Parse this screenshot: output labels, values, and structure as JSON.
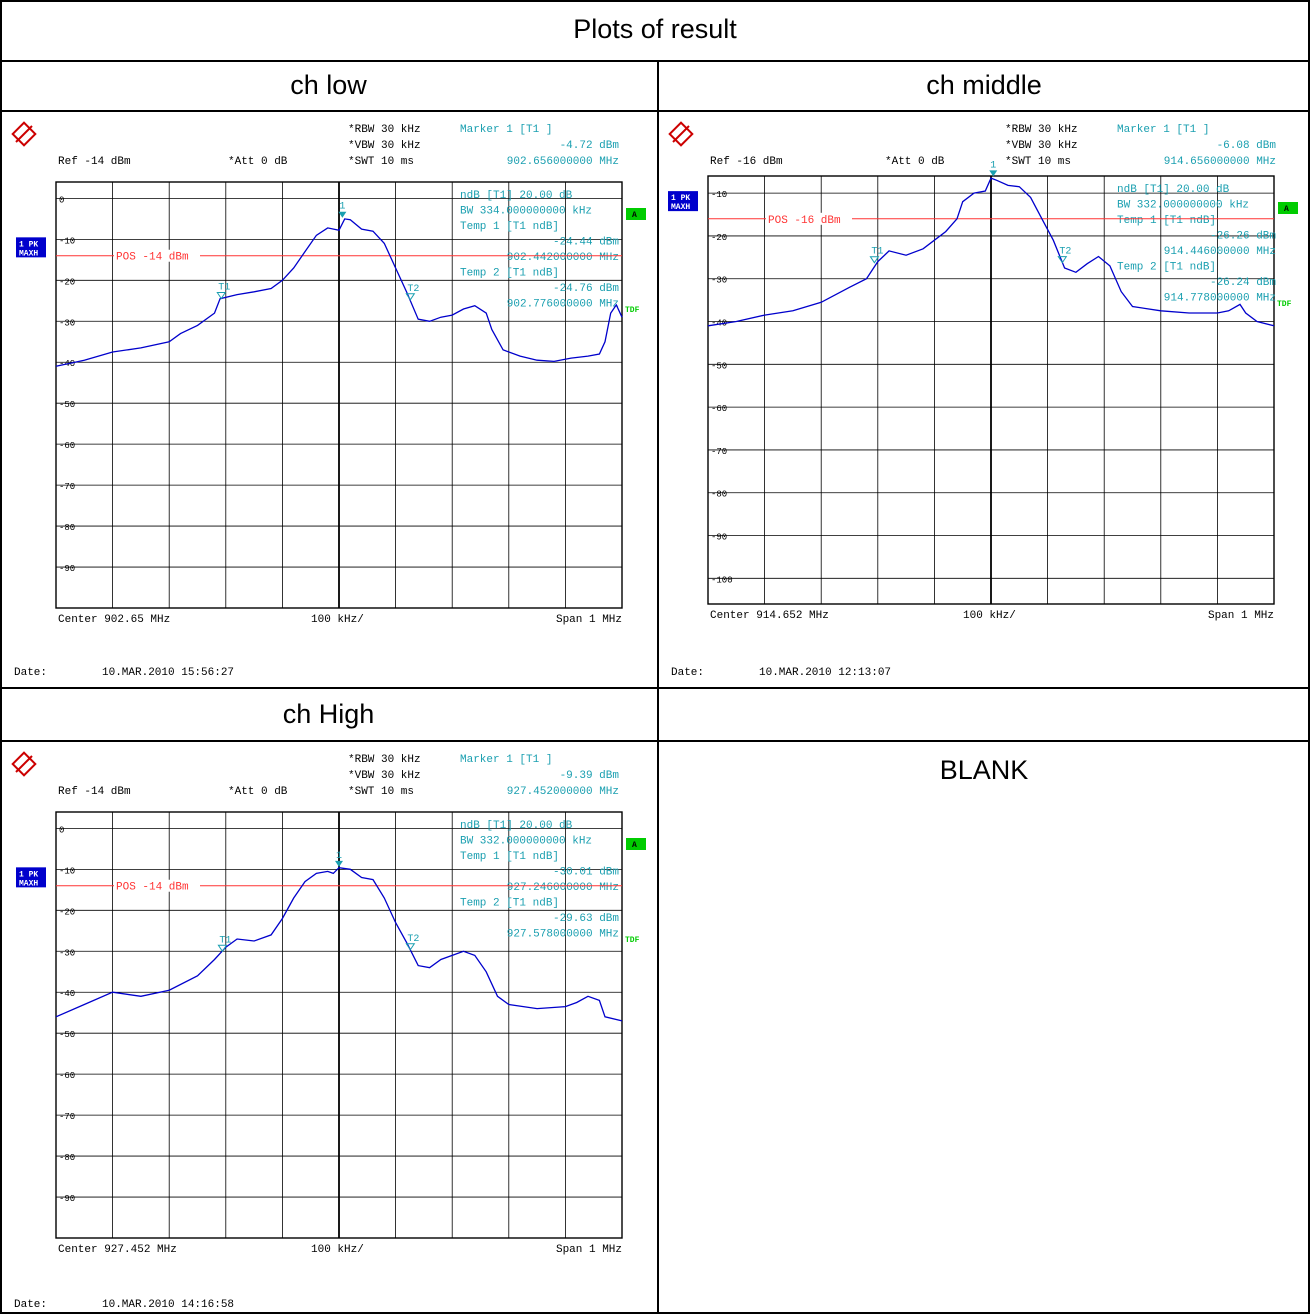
{
  "table": {
    "title": "Plots of result",
    "cells": {
      "ch_low": "ch low",
      "ch_middle": "ch middle",
      "ch_high": "ch High",
      "blank": "BLANK"
    }
  },
  "colors": {
    "trace": "#0000cc",
    "cyan": "#1a9fb0",
    "ref_line": "#ff3333",
    "badge_blue": "#0000cc",
    "badge_green": "#00cc00"
  },
  "chart_data": [
    {
      "type": "line",
      "name_key": "ch_low",
      "header": {
        "rbw": "RBW 30 kHz",
        "vbw": "VBW 30 kHz",
        "swt": "SWT 10 ms",
        "ref": "Ref -14 dBm",
        "att": "Att  0 dB"
      },
      "marker": {
        "title": "Marker 1 [T1 ]",
        "level": "-4.72 dBm",
        "freq": "902.656000000 MHz"
      },
      "ndb": {
        "line1": "ndB [T1]    20.00 dB",
        "bw": "BW 334.000000000 kHz",
        "temp1": "Temp 1 [T1 ndB]",
        "temp1_level": "-24.44 dBm",
        "temp1_freq": "902.442000000 MHz",
        "temp2": "Temp 2 [T1 ndB]",
        "temp2_level": "-24.76 dBm",
        "temp2_freq": "902.776000000 MHz"
      },
      "side": {
        "pk": "1 PK",
        "maxh": "MAXH",
        "a": "A",
        "tdf": "TDF"
      },
      "pos_label": "POS -14 dBm",
      "pos_level": -14,
      "ytick_labels": [
        "0",
        "-10",
        "-20",
        "-30",
        "-40",
        "-50",
        "-60",
        "-70",
        "-80",
        "-90"
      ],
      "ylim": [
        -100,
        4
      ],
      "xlim": [
        -0.5,
        0.5
      ],
      "center": "Center 902.65 MHz",
      "div": "100 kHz/",
      "span": "Span 1 MHz",
      "date_label": "Date:",
      "date": "10.MAR.2010  15:56:27",
      "markers": [
        {
          "label": "1",
          "x": 0.006,
          "y": -4.72
        },
        {
          "label": "T1",
          "x": -0.208,
          "y": -24.44
        },
        {
          "label": "T2",
          "x": 0.126,
          "y": -24.76
        }
      ],
      "trace": [
        [
          -0.5,
          -41
        ],
        [
          -0.45,
          -39.5
        ],
        [
          -0.4,
          -37.5
        ],
        [
          -0.35,
          -36.5
        ],
        [
          -0.3,
          -35
        ],
        [
          -0.28,
          -33
        ],
        [
          -0.25,
          -31
        ],
        [
          -0.22,
          -28
        ],
        [
          -0.21,
          -24.5
        ],
        [
          -0.18,
          -23.5
        ],
        [
          -0.15,
          -22.8
        ],
        [
          -0.12,
          -22
        ],
        [
          -0.1,
          -20
        ],
        [
          -0.08,
          -17
        ],
        [
          -0.06,
          -13
        ],
        [
          -0.04,
          -9
        ],
        [
          -0.02,
          -7.2
        ],
        [
          0.0,
          -7.8
        ],
        [
          0.01,
          -5
        ],
        [
          0.02,
          -5.2
        ],
        [
          0.04,
          -7.5
        ],
        [
          0.06,
          -8
        ],
        [
          0.08,
          -11
        ],
        [
          0.1,
          -17
        ],
        [
          0.12,
          -23
        ],
        [
          0.14,
          -29.5
        ],
        [
          0.16,
          -30
        ],
        [
          0.18,
          -29
        ],
        [
          0.2,
          -28.5
        ],
        [
          0.22,
          -27
        ],
        [
          0.24,
          -26.2
        ],
        [
          0.26,
          -28
        ],
        [
          0.27,
          -32
        ],
        [
          0.29,
          -37
        ],
        [
          0.32,
          -38.5
        ],
        [
          0.35,
          -39.5
        ],
        [
          0.38,
          -39.8
        ],
        [
          0.41,
          -39
        ],
        [
          0.44,
          -38.5
        ],
        [
          0.46,
          -38
        ],
        [
          0.47,
          -35
        ],
        [
          0.48,
          -28
        ],
        [
          0.49,
          -26
        ],
        [
          0.5,
          -29
        ]
      ]
    },
    {
      "type": "line",
      "name_key": "ch_middle",
      "header": {
        "rbw": "RBW 30 kHz",
        "vbw": "VBW 30 kHz",
        "swt": "SWT 10 ms",
        "ref": "Ref -16 dBm",
        "att": "Att  0 dB"
      },
      "marker": {
        "title": "Marker 1 [T1 ]",
        "level": "-6.08 dBm",
        "freq": "914.656000000 MHz"
      },
      "ndb": {
        "line1": "ndB [T1]    20.00 dB",
        "bw": "BW 332.000000000 kHz",
        "temp1": "Temp 1 [T1 ndB]",
        "temp1_level": "-26.26 dBm",
        "temp1_freq": "914.446000000 MHz",
        "temp2": "Temp 2 [T1 ndB]",
        "temp2_level": "-26.24 dBm",
        "temp2_freq": "914.778000000 MHz"
      },
      "side": {
        "pk": "1 PK",
        "maxh": "MAXH",
        "a": "A",
        "tdf": "TDF"
      },
      "pos_label": "POS -16 dBm",
      "pos_level": -16,
      "ytick_labels": [
        "-10",
        "-20",
        "-30",
        "-40",
        "-50",
        "-60",
        "-70",
        "-80",
        "-90",
        "-100"
      ],
      "ylim": [
        -106,
        -6
      ],
      "xlim": [
        -0.5,
        0.5
      ],
      "center": "Center 914.652 MHz",
      "div": "100 kHz/",
      "span": "Span 1 MHz",
      "date_label": "Date:",
      "date": "10.MAR.2010  12:13:07",
      "markers": [
        {
          "label": "1",
          "x": 0.004,
          "y": -6.08
        },
        {
          "label": "T1",
          "x": -0.206,
          "y": -26.26
        },
        {
          "label": "T2",
          "x": 0.126,
          "y": -26.24
        }
      ],
      "trace": [
        [
          -0.5,
          -41
        ],
        [
          -0.45,
          -40
        ],
        [
          -0.4,
          -38.5
        ],
        [
          -0.35,
          -37.5
        ],
        [
          -0.3,
          -35.5
        ],
        [
          -0.25,
          -32
        ],
        [
          -0.22,
          -30
        ],
        [
          -0.2,
          -26
        ],
        [
          -0.18,
          -23.5
        ],
        [
          -0.15,
          -24.5
        ],
        [
          -0.12,
          -23
        ],
        [
          -0.1,
          -21
        ],
        [
          -0.08,
          -19
        ],
        [
          -0.06,
          -16
        ],
        [
          -0.05,
          -12
        ],
        [
          -0.03,
          -10
        ],
        [
          -0.01,
          -9.5
        ],
        [
          0.0,
          -6.5
        ],
        [
          0.01,
          -7
        ],
        [
          0.03,
          -8.2
        ],
        [
          0.05,
          -8.5
        ],
        [
          0.07,
          -11
        ],
        [
          0.09,
          -16
        ],
        [
          0.11,
          -21
        ],
        [
          0.13,
          -27.5
        ],
        [
          0.15,
          -28.5
        ],
        [
          0.17,
          -26.5
        ],
        [
          0.19,
          -24.8
        ],
        [
          0.21,
          -27
        ],
        [
          0.23,
          -33
        ],
        [
          0.25,
          -36.5
        ],
        [
          0.3,
          -37.5
        ],
        [
          0.35,
          -38
        ],
        [
          0.4,
          -38
        ],
        [
          0.42,
          -37.5
        ],
        [
          0.44,
          -36
        ],
        [
          0.45,
          -38
        ],
        [
          0.47,
          -40
        ],
        [
          0.5,
          -41
        ]
      ]
    },
    {
      "type": "line",
      "name_key": "ch_high",
      "header": {
        "rbw": "RBW 30 kHz",
        "vbw": "VBW 30 kHz",
        "swt": "SWT 10 ms",
        "ref": "Ref -14 dBm",
        "att": "Att  0 dB"
      },
      "marker": {
        "title": "Marker 1 [T1 ]",
        "level": "-9.39 dBm",
        "freq": "927.452000000 MHz"
      },
      "ndb": {
        "line1": "ndB [T1]    20.00 dB",
        "bw": "BW 332.000000000 kHz",
        "temp1": "Temp 1 [T1 ndB]",
        "temp1_level": "-30.01 dBm",
        "temp1_freq": "927.246000000 MHz",
        "temp2": "Temp 2 [T1 ndB]",
        "temp2_level": "-29.63 dBm",
        "temp2_freq": "927.578000000 MHz"
      },
      "side": {
        "pk": "1 PK",
        "maxh": "MAXH",
        "a": "A",
        "tdf": "TDF"
      },
      "pos_label": "POS -14 dBm",
      "pos_level": -14,
      "ytick_labels": [
        "0",
        "-10",
        "-20",
        "-30",
        "-40",
        "-50",
        "-60",
        "-70",
        "-80",
        "-90"
      ],
      "ylim": [
        -100,
        4
      ],
      "xlim": [
        -0.5,
        0.5
      ],
      "center": "Center 927.452 MHz",
      "div": "100 kHz/",
      "span": "Span 1 MHz",
      "date_label": "Date:",
      "date": "10.MAR.2010  14:16:58",
      "markers": [
        {
          "label": "1",
          "x": 0.0,
          "y": -9.39
        },
        {
          "label": "T2",
          "x": 0.126,
          "y": -29.63
        },
        {
          "label": "T1",
          "x": -0.206,
          "y": -30.01
        }
      ],
      "trace": [
        [
          -0.5,
          -46
        ],
        [
          -0.45,
          -43
        ],
        [
          -0.4,
          -40
        ],
        [
          -0.35,
          -41
        ],
        [
          -0.3,
          -39.5
        ],
        [
          -0.25,
          -36
        ],
        [
          -0.22,
          -32
        ],
        [
          -0.2,
          -29
        ],
        [
          -0.18,
          -27
        ],
        [
          -0.15,
          -27.5
        ],
        [
          -0.12,
          -26
        ],
        [
          -0.1,
          -22
        ],
        [
          -0.08,
          -17
        ],
        [
          -0.06,
          -13
        ],
        [
          -0.04,
          -11
        ],
        [
          -0.02,
          -10.5
        ],
        [
          -0.01,
          -11
        ],
        [
          0.0,
          -9.6
        ],
        [
          0.02,
          -10
        ],
        [
          0.04,
          -12
        ],
        [
          0.06,
          -12.5
        ],
        [
          0.08,
          -17
        ],
        [
          0.1,
          -23
        ],
        [
          0.12,
          -28
        ],
        [
          0.14,
          -33.5
        ],
        [
          0.16,
          -34
        ],
        [
          0.18,
          -32
        ],
        [
          0.2,
          -31
        ],
        [
          0.22,
          -30
        ],
        [
          0.24,
          -31
        ],
        [
          0.26,
          -35
        ],
        [
          0.28,
          -41
        ],
        [
          0.3,
          -43
        ],
        [
          0.35,
          -44
        ],
        [
          0.4,
          -43.5
        ],
        [
          0.42,
          -42.5
        ],
        [
          0.44,
          -41
        ],
        [
          0.46,
          -42
        ],
        [
          0.47,
          -46
        ],
        [
          0.5,
          -47
        ]
      ]
    }
  ]
}
